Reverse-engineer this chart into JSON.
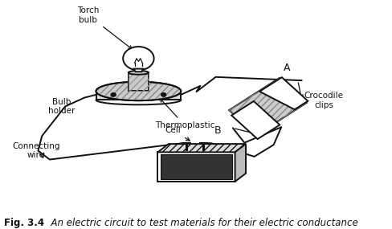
{
  "title_bold": "Fig. 3.4",
  "title_italic": "  An electric circuit to test materials for their electric conductance",
  "bg_color": "#ffffff",
  "ink_color": "#111111",
  "fig_width": 4.89,
  "fig_height": 2.85,
  "dpi": 100,
  "labels": {
    "torch_bulb": "Torch\nbulb",
    "thermoplastic": "Thermoplastic",
    "bulb_holder": "Bulb\nholder",
    "cell": "Cell",
    "connecting_wire": "Connecting\nwire",
    "crocodile_clips": "Crocodile\nclips",
    "A": "A",
    "B": "B"
  },
  "font_size": 7.5,
  "font_size_AB": 9
}
